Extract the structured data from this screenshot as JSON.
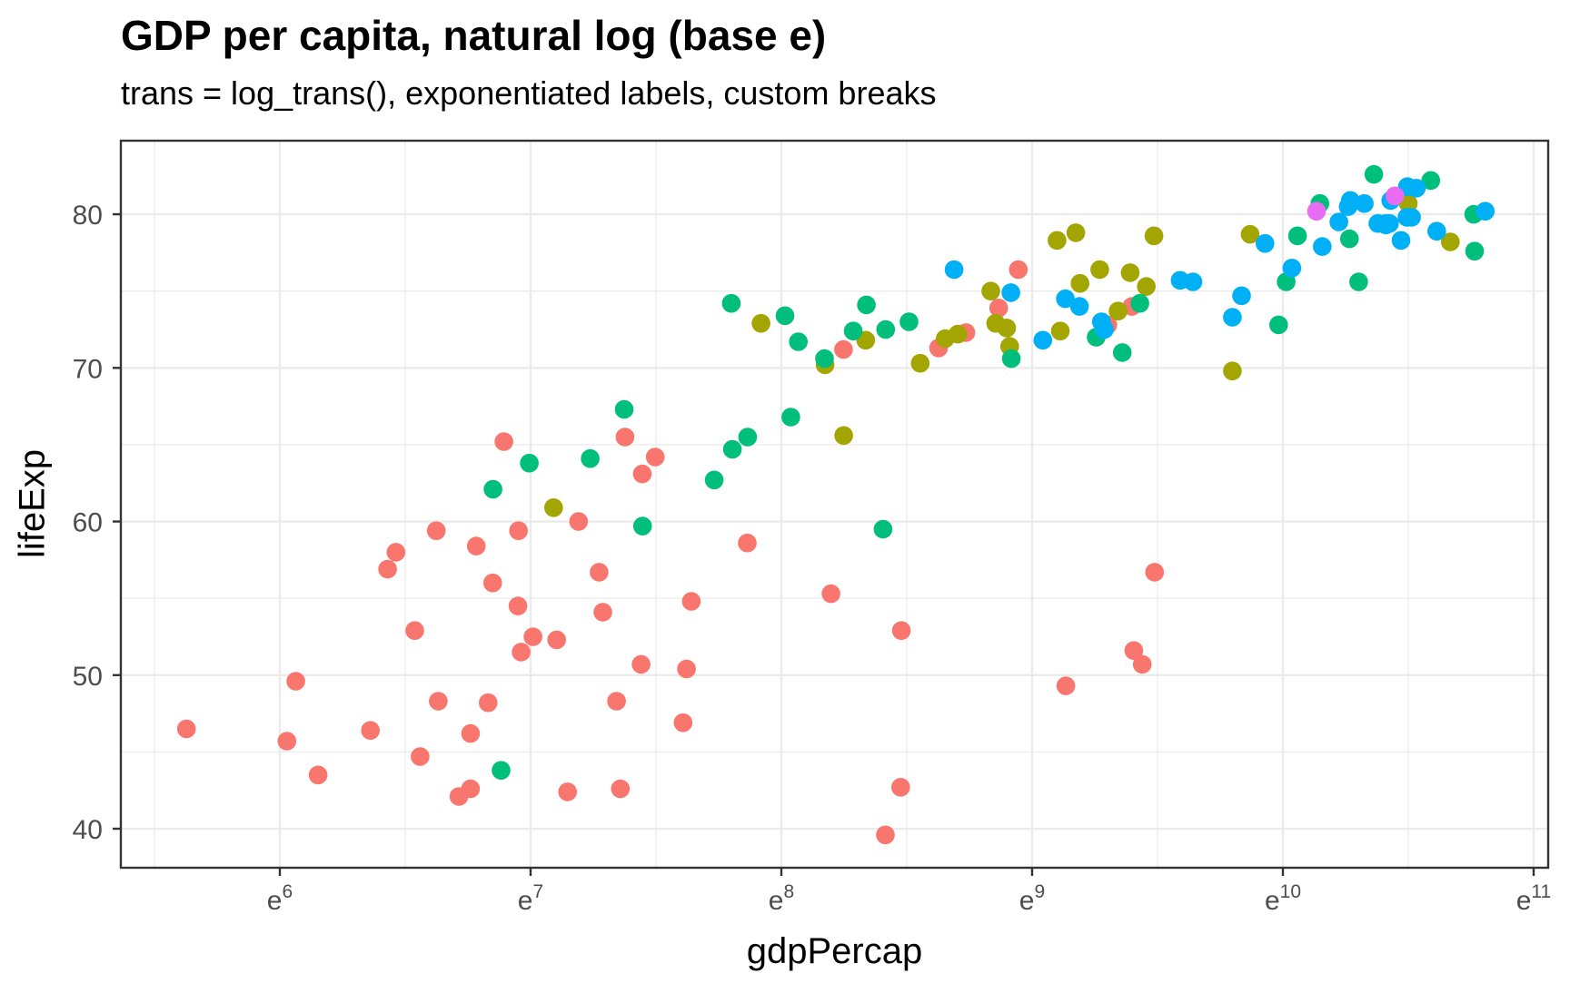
{
  "chart_data": {
    "type": "scatter",
    "title": "GDP per capita, natural log (base e)",
    "subtitle": "trans = log_trans(), exponentiated labels, custom breaks",
    "xlabel": "gdpPercap",
    "ylabel": "lifeExp",
    "x_scale": "log base e",
    "x_tick_base": "e",
    "x_break_exponents": [
      6,
      7,
      8,
      9,
      10,
      11
    ],
    "x_minor_break_exponents": [
      5.5,
      6.5,
      7.5,
      8.5,
      9.5,
      10.5
    ],
    "y_breaks": [
      40,
      50,
      60,
      70,
      80
    ],
    "y_minor_breaks": [
      45,
      55,
      65,
      75
    ],
    "x_domain_ln": [
      5.366,
      11.058
    ],
    "y_domain": [
      37.46,
      84.79
    ],
    "legend_position": "none",
    "grid": "major+minor",
    "point_radius": 10.3,
    "colors": {
      "major_grid": "#EBEBEB",
      "minor_grid": "#EBEBEB",
      "panel_border": "#333333",
      "tick_mark": "#333333",
      "tick_label": "#4D4D4D",
      "axis_title": "#000000",
      "title": "#000000",
      "panel_background": "#FFFFFF"
    },
    "series": [
      {
        "name": "red",
        "color": "#F8766D",
        "points": [
          [
            6223,
            72.3
          ],
          [
            4797,
            42.7
          ],
          [
            1441,
            56.7
          ],
          [
            12570,
            50.7
          ],
          [
            1217,
            52.3
          ],
          [
            430,
            49.6
          ],
          [
            2042,
            50.4
          ],
          [
            706,
            44.7
          ],
          [
            1704,
            50.7
          ],
          [
            986,
            65.2
          ],
          [
            278,
            46.5
          ],
          [
            3633,
            55.3
          ],
          [
            1545,
            48.3
          ],
          [
            2082,
            54.8
          ],
          [
            5581,
            71.3
          ],
          [
            12154,
            51.6
          ],
          [
            641,
            58.0
          ],
          [
            691,
            52.9
          ],
          [
            13206,
            56.7
          ],
          [
            753,
            59.4
          ],
          [
            1328,
            60.0
          ],
          [
            943,
            56.0
          ],
          [
            579,
            46.4
          ],
          [
            1463,
            54.1
          ],
          [
            1569,
            42.6
          ],
          [
            415,
            45.7
          ],
          [
            12057,
            74.0
          ],
          [
            1045,
            59.4
          ],
          [
            759,
            48.3
          ],
          [
            1043,
            54.5
          ],
          [
            1803,
            64.2
          ],
          [
            10957,
            72.8
          ],
          [
            3820,
            71.2
          ],
          [
            824,
            42.1
          ],
          [
            4811,
            52.9
          ],
          [
            620,
            56.9
          ],
          [
            2014,
            46.9
          ],
          [
            7670,
            76.4
          ],
          [
            863,
            46.2
          ],
          [
            1598,
            65.5
          ],
          [
            1712,
            63.1
          ],
          [
            863,
            42.6
          ],
          [
            926,
            48.2
          ],
          [
            9270,
            49.3
          ],
          [
            2602,
            58.6
          ],
          [
            4513,
            39.6
          ],
          [
            1107,
            52.5
          ],
          [
            883,
            58.4
          ],
          [
            7093,
            73.9
          ],
          [
            1056,
            51.5
          ],
          [
            1271,
            42.4
          ],
          [
            470,
            43.5
          ]
        ]
      },
      {
        "name": "olive",
        "color": "#A3A500",
        "points": [
          [
            12779,
            75.3
          ],
          [
            3822,
            65.6
          ],
          [
            9066,
            72.4
          ],
          [
            36319,
            80.7
          ],
          [
            13172,
            78.6
          ],
          [
            7007,
            72.9
          ],
          [
            9645,
            78.8
          ],
          [
            8948,
            78.3
          ],
          [
            6025,
            72.2
          ],
          [
            6873,
            75.0
          ],
          [
            5728,
            71.9
          ],
          [
            5186,
            70.3
          ],
          [
            1202,
            60.9
          ],
          [
            3548,
            70.2
          ],
          [
            7321,
            72.6
          ],
          [
            11978,
            76.2
          ],
          [
            2749,
            72.9
          ],
          [
            9809,
            75.5
          ],
          [
            4173,
            71.8
          ],
          [
            7409,
            71.4
          ],
          [
            19329,
            78.7
          ],
          [
            18009,
            69.8
          ],
          [
            42952,
            78.2
          ],
          [
            10611,
            76.4
          ],
          [
            11416,
            73.7
          ]
        ]
      },
      {
        "name": "green",
        "color": "#00BF7D",
        "points": [
          [
            975,
            43.8
          ],
          [
            29796,
            75.6
          ],
          [
            1391,
            64.1
          ],
          [
            1714,
            59.7
          ],
          [
            4959,
            73.0
          ],
          [
            39725,
            82.2
          ],
          [
            2452,
            64.7
          ],
          [
            3541,
            70.6
          ],
          [
            11606,
            71.0
          ],
          [
            4471,
            59.5
          ],
          [
            25523,
            80.7
          ],
          [
            31656,
            82.6
          ],
          [
            4519,
            72.5
          ],
          [
            1593,
            67.3
          ],
          [
            23348,
            78.6
          ],
          [
            47307,
            77.6
          ],
          [
            10461,
            72.0
          ],
          [
            12452,
            74.2
          ],
          [
            3096,
            66.8
          ],
          [
            944,
            62.1
          ],
          [
            1091,
            63.8
          ],
          [
            22316,
            75.6
          ],
          [
            2606,
            65.5
          ],
          [
            3190,
            71.7
          ],
          [
            21655,
            72.8
          ],
          [
            47143,
            80.0
          ],
          [
            3970,
            72.4
          ],
          [
            4184,
            74.1
          ],
          [
            28718,
            78.4
          ],
          [
            7458,
            70.6
          ],
          [
            2442,
            74.2
          ],
          [
            3025,
            73.4
          ],
          [
            2281,
            62.7
          ]
        ]
      },
      {
        "name": "blue",
        "color": "#00B0F6",
        "points": [
          [
            5937,
            76.4
          ],
          [
            36126,
            79.8
          ],
          [
            33693,
            79.4
          ],
          [
            7446,
            74.9
          ],
          [
            10681,
            73.0
          ],
          [
            14619,
            75.7
          ],
          [
            22833,
            76.5
          ],
          [
            35278,
            78.3
          ],
          [
            33207,
            79.3
          ],
          [
            30470,
            80.7
          ],
          [
            32170,
            79.4
          ],
          [
            27538,
            79.5
          ],
          [
            18009,
            73.3
          ],
          [
            36181,
            81.8
          ],
          [
            40676,
            78.9
          ],
          [
            28570,
            80.5
          ],
          [
            9254,
            74.5
          ],
          [
            36798,
            79.8
          ],
          [
            49357,
            80.2
          ],
          [
            15390,
            75.6
          ],
          [
            20510,
            78.1
          ],
          [
            10808,
            72.5
          ],
          [
            9787,
            74.0
          ],
          [
            18678,
            74.7
          ],
          [
            25768,
            77.9
          ],
          [
            28821,
            80.9
          ],
          [
            33860,
            80.9
          ],
          [
            37506,
            81.7
          ],
          [
            8458,
            71.8
          ],
          [
            33203,
            79.4
          ]
        ]
      },
      {
        "name": "magenta",
        "color": "#E76BF3",
        "points": [
          [
            34435,
            81.2
          ],
          [
            25185,
            80.2
          ]
        ]
      }
    ]
  }
}
